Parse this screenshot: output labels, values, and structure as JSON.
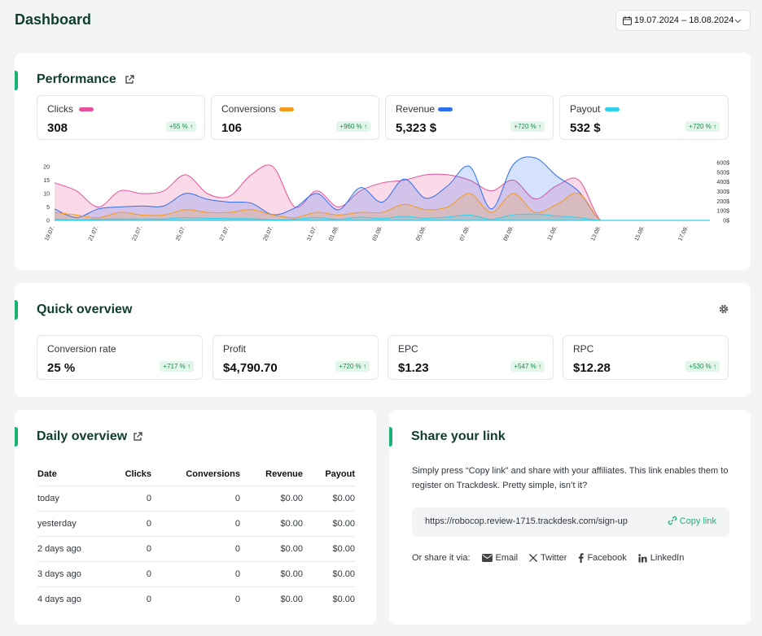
{
  "header": {
    "title": "Dashboard",
    "date_range": "19.07.2024 – 18.08.2024"
  },
  "performance": {
    "title": "Performance",
    "metrics": [
      {
        "label": "Clicks",
        "value": "308",
        "change": "+55 %",
        "color": "#e8509a"
      },
      {
        "label": "Conversions",
        "value": "106",
        "change": "+960 %",
        "color": "#f39a1d"
      },
      {
        "label": "Revenue",
        "value": "5,323 $",
        "change": "+720 %",
        "color": "#2e6ff0"
      },
      {
        "label": "Payout",
        "value": "532 $",
        "change": "+720 %",
        "color": "#2fd2ea"
      }
    ]
  },
  "chart_data": {
    "type": "area",
    "x": [
      "19.07.",
      "20.07.",
      "21.07.",
      "22.07.",
      "23.07.",
      "24.07.",
      "25.07.",
      "26.07.",
      "27.07.",
      "28.07.",
      "29.07.",
      "30.07.",
      "31.07.",
      "01.08.",
      "02.08.",
      "03.08.",
      "04.08.",
      "05.08.",
      "06.08.",
      "07.08.",
      "08.08.",
      "09.08.",
      "10.08.",
      "11.08.",
      "12.08.",
      "13.08.",
      "14.08.",
      "15.08.",
      "16.08.",
      "17.08.",
      "18.08."
    ],
    "x_tick_labels": [
      "19.07.",
      "21.07.",
      "23.07.",
      "25.07.",
      "27.07.",
      "29.07.",
      "31.07.",
      "01.08.",
      "03.08.",
      "05.08.",
      "07.08.",
      "09.08.",
      "11.08.",
      "13.08.",
      "15.08.",
      "17.08."
    ],
    "y_left_ticks": [
      "0",
      "5",
      "10",
      "15",
      "20"
    ],
    "y_right_ticks": [
      "0$",
      "100$",
      "200$",
      "300$",
      "400$",
      "500$",
      "600$"
    ],
    "ylim_left": [
      0,
      20
    ],
    "ylim_right": [
      0,
      600
    ],
    "grid": false,
    "series": [
      {
        "name": "Clicks",
        "axis": "left",
        "color": "#e8509a",
        "values": [
          14,
          11,
          5,
          11,
          10,
          11,
          17,
          10,
          9,
          17,
          20,
          5,
          11,
          5,
          11,
          14,
          15,
          17,
          17,
          15,
          11,
          15,
          8,
          13,
          15,
          0,
          0,
          0,
          0,
          0,
          0
        ]
      },
      {
        "name": "Conversions",
        "axis": "left",
        "color": "#f39a1d",
        "values": [
          3,
          2,
          1,
          3,
          2,
          2,
          4,
          3,
          3,
          4,
          2,
          1,
          3,
          2,
          3,
          3,
          6,
          4,
          5,
          10,
          3,
          10,
          3,
          6,
          10,
          0,
          0,
          0,
          0,
          0,
          0
        ]
      },
      {
        "name": "Revenue",
        "axis": "right",
        "color": "#2e6ff0",
        "values": [
          120,
          30,
          120,
          140,
          150,
          150,
          280,
          220,
          190,
          180,
          60,
          130,
          280,
          110,
          340,
          190,
          430,
          230,
          360,
          560,
          120,
          580,
          650,
          460,
          300,
          0,
          0,
          0,
          0,
          0,
          0
        ]
      },
      {
        "name": "Payout",
        "axis": "right",
        "color": "#2fd2ea",
        "values": [
          12,
          5,
          12,
          14,
          15,
          15,
          28,
          22,
          19,
          18,
          6,
          13,
          28,
          11,
          34,
          19,
          43,
          23,
          36,
          56,
          12,
          58,
          65,
          46,
          30,
          0,
          0,
          0,
          0,
          0,
          0
        ]
      }
    ]
  },
  "quick_overview": {
    "title": "Quick overview",
    "metrics": [
      {
        "label": "Conversion rate",
        "value": "25 %",
        "change": "+717 %"
      },
      {
        "label": "Profit",
        "value": "$4,790.70",
        "change": "+720 %"
      },
      {
        "label": "EPC",
        "value": "$1.23",
        "change": "+547 %"
      },
      {
        "label": "RPC",
        "value": "$12.28",
        "change": "+530 %"
      }
    ]
  },
  "daily_overview": {
    "title": "Daily overview",
    "columns": [
      "Date",
      "Clicks",
      "Conversions",
      "Revenue",
      "Payout"
    ],
    "rows": [
      [
        "today",
        "0",
        "0",
        "$0.00",
        "$0.00"
      ],
      [
        "yesterday",
        "0",
        "0",
        "$0.00",
        "$0.00"
      ],
      [
        "2 days ago",
        "0",
        "0",
        "$0.00",
        "$0.00"
      ],
      [
        "3 days ago",
        "0",
        "0",
        "$0.00",
        "$0.00"
      ],
      [
        "4 days ago",
        "0",
        "0",
        "$0.00",
        "$0.00"
      ]
    ]
  },
  "share": {
    "title": "Share your link",
    "description": "Simply press “Copy link” and share with your affiliates. This link enables them to register on Trackdesk. Pretty simple, isn’t it?",
    "url": "https://robocop.review-1715.trackdesk.com/sign-up",
    "copy_label": "Copy link",
    "via_label": "Or share it via:",
    "options": [
      "Email",
      "Twitter",
      "Facebook",
      "LinkedIn"
    ]
  }
}
